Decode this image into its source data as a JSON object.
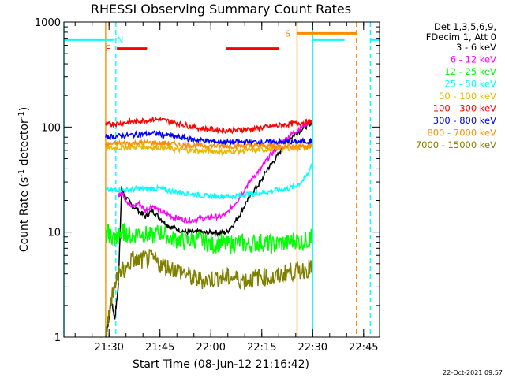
{
  "chart_data": {
    "type": "line",
    "title": "RHESSI Observing Summary Count Rates",
    "xlabel": "Start Time (08-Jun-12 21:16:42)",
    "ylabel_main": "Count Rate (s",
    "ylabel_sup1": "-1",
    "ylabel_mid": " detector",
    "ylabel_sup2": "-1",
    "ylabel_end": ")",
    "yscale": "log",
    "ylim": [
      1,
      1000
    ],
    "xlim_minutes": [
      0,
      93
    ],
    "xtick_labels": [
      "21:30",
      "21:45",
      "22:00",
      "22:15",
      "22:30",
      "22:45"
    ],
    "xtick_minutes": [
      13.3,
      28.3,
      43.3,
      58.3,
      73.3,
      88.3
    ],
    "ytick_labels": [
      "1",
      "10",
      "100",
      "1000"
    ],
    "ytick_values": [
      1,
      10,
      100,
      1000
    ],
    "legend_header": [
      "Det 1,3,5,6,9,",
      "FDecim 1, Att 0"
    ],
    "legend_position": "right",
    "series": [
      {
        "name": "3 - 6 keV",
        "color": "#000000",
        "x": [
          12.3,
          13,
          13.5,
          14,
          15,
          16,
          17,
          18,
          20,
          22,
          24,
          26,
          28,
          30,
          32,
          34,
          36,
          38,
          40,
          42,
          44,
          46,
          48,
          50,
          52,
          54,
          56,
          58,
          60,
          62,
          64,
          66,
          68,
          70,
          72,
          73
        ],
        "y": [
          1,
          1.3,
          1.8,
          2.2,
          1.5,
          3,
          26,
          22,
          18,
          16,
          14,
          16,
          14,
          12,
          11,
          10.5,
          10,
          10,
          10,
          9.8,
          10,
          9.8,
          10,
          12,
          15,
          20,
          25,
          30,
          40,
          48,
          60,
          75,
          85,
          95,
          105,
          110
        ]
      },
      {
        "name": "6 - 12 keV",
        "color": "#ff00ff",
        "x": [
          16,
          17,
          18,
          20,
          22,
          24,
          26,
          28,
          30,
          32,
          34,
          36,
          38,
          40,
          42,
          44,
          46,
          48,
          50,
          52,
          54,
          56,
          58,
          60,
          62,
          64,
          66,
          68,
          70,
          72,
          73
        ],
        "y": [
          22,
          24,
          21,
          17,
          19,
          16,
          18,
          16,
          15,
          14,
          13.5,
          13,
          13,
          13.5,
          13.5,
          14,
          14,
          15,
          18,
          22,
          28,
          34,
          40,
          50,
          60,
          70,
          80,
          90,
          100,
          110,
          115
        ]
      },
      {
        "name": "12 - 25 keV",
        "color": "#00ff00",
        "x": [
          12.3,
          13,
          14,
          15,
          16,
          17,
          18,
          20,
          22,
          24,
          26,
          28,
          30,
          32,
          34,
          36,
          38,
          40,
          42,
          44,
          46,
          48,
          50,
          52,
          54,
          56,
          58,
          60,
          62,
          64,
          66,
          68,
          70,
          72,
          73
        ],
        "y": [
          9,
          10,
          9,
          8.5,
          9,
          10,
          10,
          9,
          10,
          9.5,
          9,
          10,
          9.5,
          8.5,
          8.5,
          8,
          8.5,
          8.5,
          8,
          7.5,
          8,
          7.5,
          7.8,
          8,
          7.5,
          7.8,
          8,
          7.8,
          7.5,
          8,
          7.8,
          8.5,
          8,
          8.5,
          9
        ]
      },
      {
        "name": "25 - 50 keV",
        "color": "#00ffff",
        "x": [
          12.3,
          14,
          16,
          18,
          20,
          22,
          24,
          26,
          28,
          30,
          32,
          34,
          36,
          38,
          40,
          42,
          44,
          46,
          48,
          50,
          52,
          54,
          56,
          58,
          60,
          62,
          64,
          66,
          68,
          70,
          72,
          73
        ],
        "y": [
          25,
          25,
          25.5,
          25,
          25.5,
          26,
          25.5,
          26,
          26,
          25,
          24.5,
          24,
          23.5,
          23,
          22.5,
          22,
          22,
          22,
          22,
          22,
          22.5,
          23,
          23,
          24,
          24,
          25,
          25.5,
          26,
          27,
          30,
          36,
          45
        ]
      },
      {
        "name": "50 - 100 keV",
        "color": "#e6b800",
        "x": [
          12.3,
          14,
          16,
          18,
          20,
          22,
          24,
          26,
          28,
          30,
          32,
          34,
          36,
          38,
          40,
          42,
          44,
          46,
          48,
          50,
          52,
          54,
          56,
          58,
          60,
          62,
          64,
          66,
          68,
          70,
          72,
          73
        ],
        "y": [
          62,
          63,
          63,
          64,
          64,
          65,
          65,
          64,
          64,
          63,
          62,
          61,
          60,
          60,
          59,
          59,
          59,
          58,
          58,
          59,
          59,
          60,
          60,
          61,
          61,
          62,
          62,
          63,
          63,
          64,
          64,
          65
        ]
      },
      {
        "name": "100 - 300 keV",
        "color": "#ff0000",
        "x": [
          12.3,
          14,
          16,
          18,
          20,
          22,
          24,
          26,
          28,
          30,
          32,
          34,
          36,
          38,
          40,
          42,
          44,
          46,
          48,
          50,
          52,
          54,
          56,
          58,
          60,
          62,
          64,
          66,
          68,
          70,
          72,
          73
        ],
        "y": [
          105,
          107,
          108,
          110,
          112,
          114,
          116,
          118,
          118,
          115,
          112,
          108,
          104,
          100,
          98,
          96,
          95,
          94,
          93,
          93,
          94,
          95,
          96,
          98,
          100,
          102,
          104,
          106,
          108,
          110,
          112,
          113
        ]
      },
      {
        "name": "300 - 800 keV",
        "color": "#0000ff",
        "x": [
          12.3,
          14,
          16,
          18,
          20,
          22,
          24,
          26,
          28,
          30,
          32,
          34,
          36,
          38,
          40,
          42,
          44,
          46,
          48,
          50,
          52,
          54,
          56,
          58,
          60,
          62,
          64,
          66,
          68,
          70,
          72,
          73
        ],
        "y": [
          80,
          81,
          82,
          83,
          84,
          85,
          86,
          87,
          86,
          84,
          82,
          80,
          78,
          76,
          75,
          74,
          73,
          72,
          72,
          72,
          72,
          72,
          72,
          72,
          72,
          72,
          72,
          72,
          72,
          73,
          73,
          73
        ]
      },
      {
        "name": "800 - 7000 keV",
        "color": "#ff8c00",
        "x": [
          12.3,
          14,
          16,
          18,
          20,
          22,
          24,
          26,
          28,
          30,
          32,
          34,
          36,
          38,
          40,
          42,
          44,
          46,
          48,
          50,
          52,
          54,
          56,
          58,
          60,
          62,
          64,
          66,
          68,
          70,
          72,
          73
        ],
        "y": [
          68,
          69,
          70,
          70,
          70,
          71,
          71,
          71,
          70,
          70,
          69,
          68,
          67,
          67,
          66,
          66,
          66,
          66,
          66,
          66,
          66,
          66,
          66,
          66,
          66,
          66,
          66,
          66,
          66,
          66,
          66,
          66
        ]
      },
      {
        "name": "7000 - 15000 keV",
        "color": "#808000",
        "x": [
          12.3,
          13,
          14,
          15,
          16,
          17,
          18,
          20,
          22,
          24,
          26,
          28,
          30,
          32,
          34,
          36,
          38,
          40,
          42,
          44,
          46,
          48,
          50,
          52,
          54,
          56,
          58,
          60,
          62,
          64,
          66,
          68,
          70,
          72,
          73
        ],
        "y": [
          1,
          1.5,
          2.3,
          3,
          4,
          4.3,
          4.2,
          5.5,
          5.3,
          5.5,
          5.6,
          5,
          4.7,
          4.5,
          4.3,
          4,
          3.6,
          3.5,
          3.5,
          3.6,
          3.7,
          3.7,
          3.7,
          3.5,
          3.5,
          3.6,
          3.8,
          3.7,
          3.6,
          3.9,
          4.2,
          4.2,
          4.3,
          4.5,
          4.5
        ]
      }
    ],
    "flag_bars": [
      {
        "label": "N",
        "label_color": "#00ffff",
        "color": "#00ffff",
        "y": 680,
        "segments": [
          [
            0,
            14.6
          ],
          [
            73.3,
            82.7
          ],
          [
            90.3,
            93
          ]
        ]
      },
      {
        "label": "F",
        "label_color": "#ff0000",
        "color": "#ff0000",
        "y": 560,
        "segments": [
          [
            15.6,
            24.5
          ],
          [
            47.8,
            63.3
          ]
        ]
      },
      {
        "label": "S",
        "label_color": "#ff8c00",
        "color": "#ff8c00",
        "y": 780,
        "segments": [
          [
            68.7,
            86.2
          ]
        ]
      }
    ],
    "vlines": [
      {
        "x": 0,
        "color": "#00ffff",
        "style": "solid"
      },
      {
        "x": 15.3,
        "color": "#00ffff",
        "style": "dash"
      },
      {
        "x": 12.3,
        "color": "#ff8c00",
        "style": "solid"
      },
      {
        "x": 68.7,
        "color": "#ff8c00",
        "style": "solid"
      },
      {
        "x": 73.3,
        "color": "#00ffff",
        "style": "solid"
      },
      {
        "x": 86.2,
        "color": "#ff8c00",
        "style": "dash"
      },
      {
        "x": 90.3,
        "color": "#00ffff",
        "style": "dash"
      }
    ],
    "timestamp": "22-Oct-2021 09:57"
  }
}
